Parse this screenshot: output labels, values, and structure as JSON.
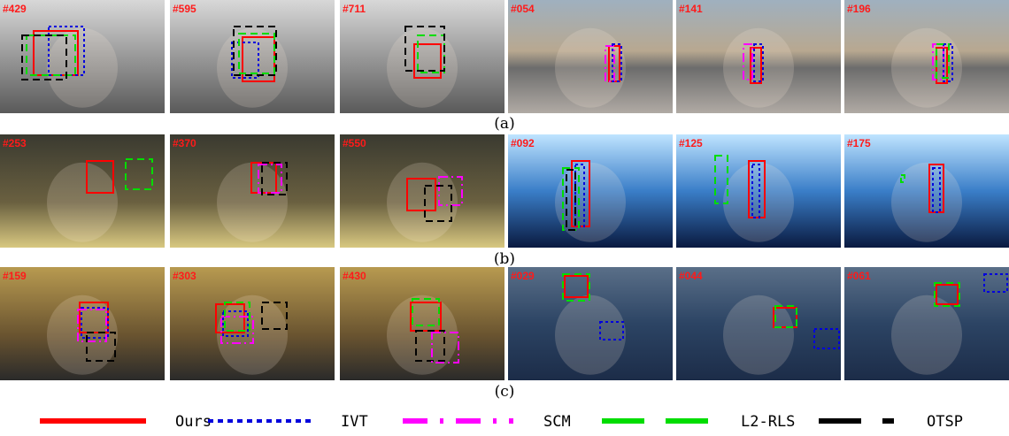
{
  "rows": [
    {
      "label": "(a)",
      "frames": [
        "#429",
        "#595",
        "#711",
        "#054",
        "#141",
        "#196"
      ]
    },
    {
      "label": "(b)",
      "frames": [
        "#253",
        "#370",
        "#550",
        "#092",
        "#125",
        "#175"
      ]
    },
    {
      "label": "(c)",
      "frames": [
        "#159",
        "#303",
        "#430",
        "#029",
        "#044",
        "#061"
      ]
    }
  ],
  "legend": [
    {
      "name": "Ours",
      "color": "#ff0000"
    },
    {
      "name": "IVT",
      "color": "#0000dd"
    },
    {
      "name": "SCM",
      "color": "#ff00ff"
    },
    {
      "name": "L2-RLS",
      "color": "#00dd00"
    },
    {
      "name": "OTSP",
      "color": "#000000"
    }
  ]
}
